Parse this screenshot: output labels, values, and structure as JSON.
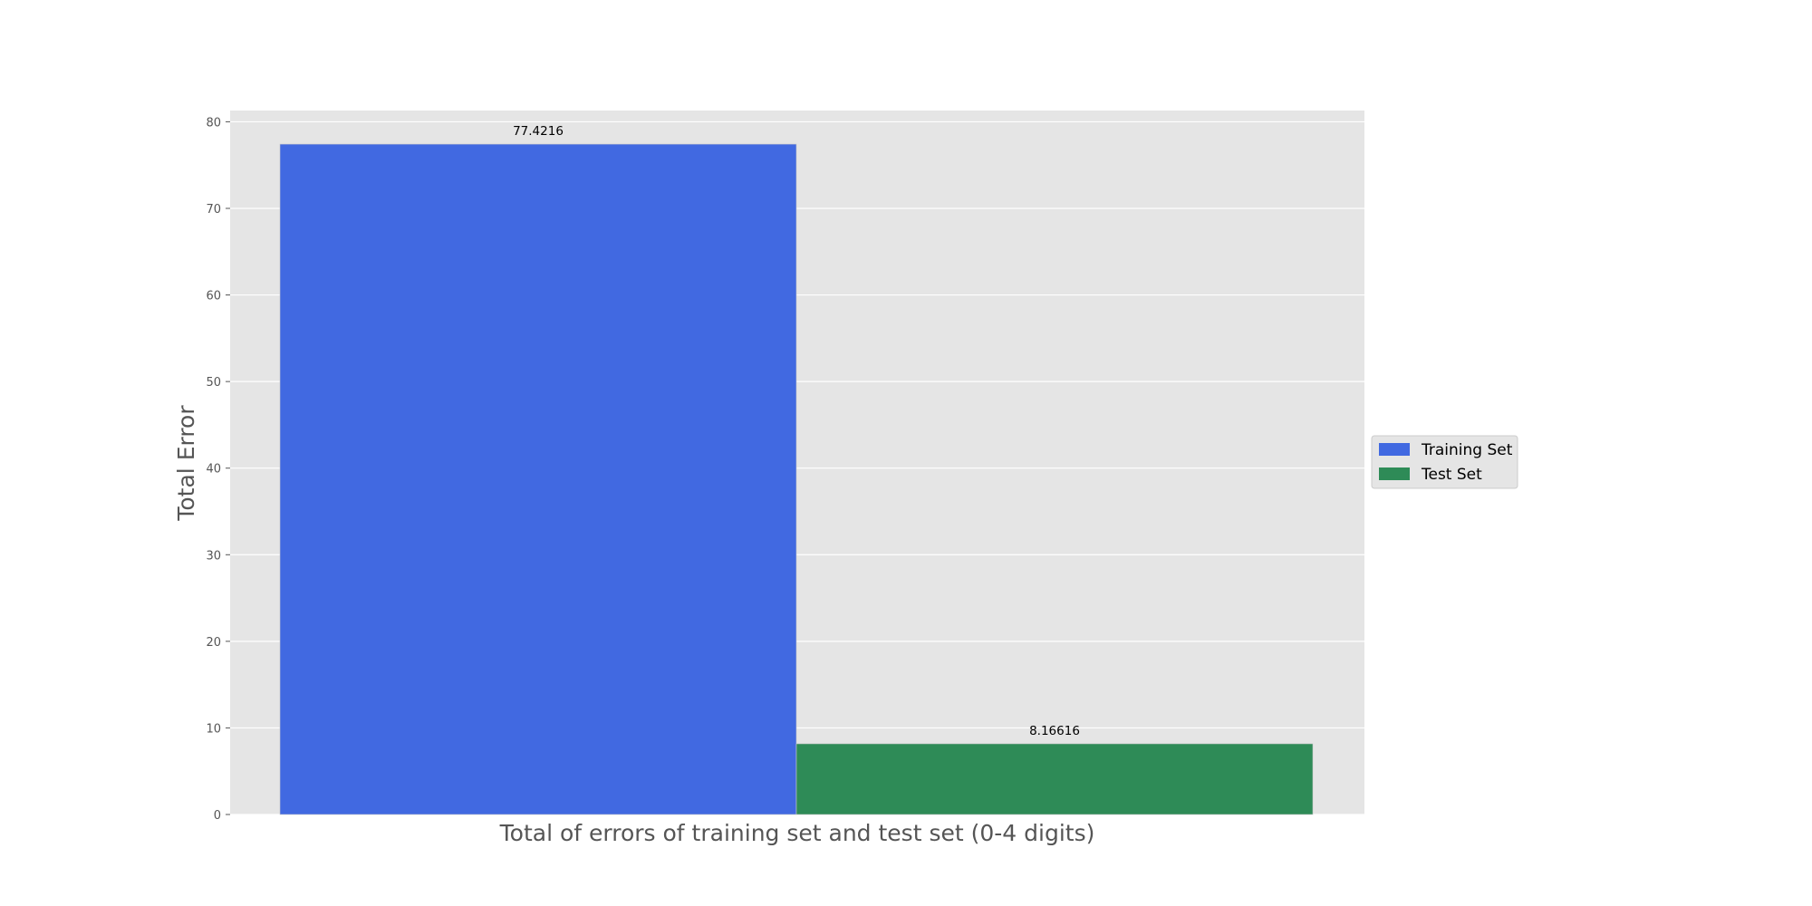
{
  "chart_data": {
    "type": "bar",
    "title": "",
    "xlabel": "Total of errors of training set and test set (0-4 digits)",
    "ylabel": "Total Error",
    "ylim": [
      0,
      81.3
    ],
    "yticks": [
      0,
      10,
      20,
      30,
      40,
      50,
      60,
      70,
      80
    ],
    "grid": true,
    "legend_position": "center-right outside",
    "series": [
      {
        "name": "Training Set",
        "value": 77.4216,
        "label": "77.4216",
        "color": "#4169e1"
      },
      {
        "name": "Test Set",
        "value": 8.16616,
        "label": "8.16616",
        "color": "#2e8b57"
      }
    ]
  }
}
